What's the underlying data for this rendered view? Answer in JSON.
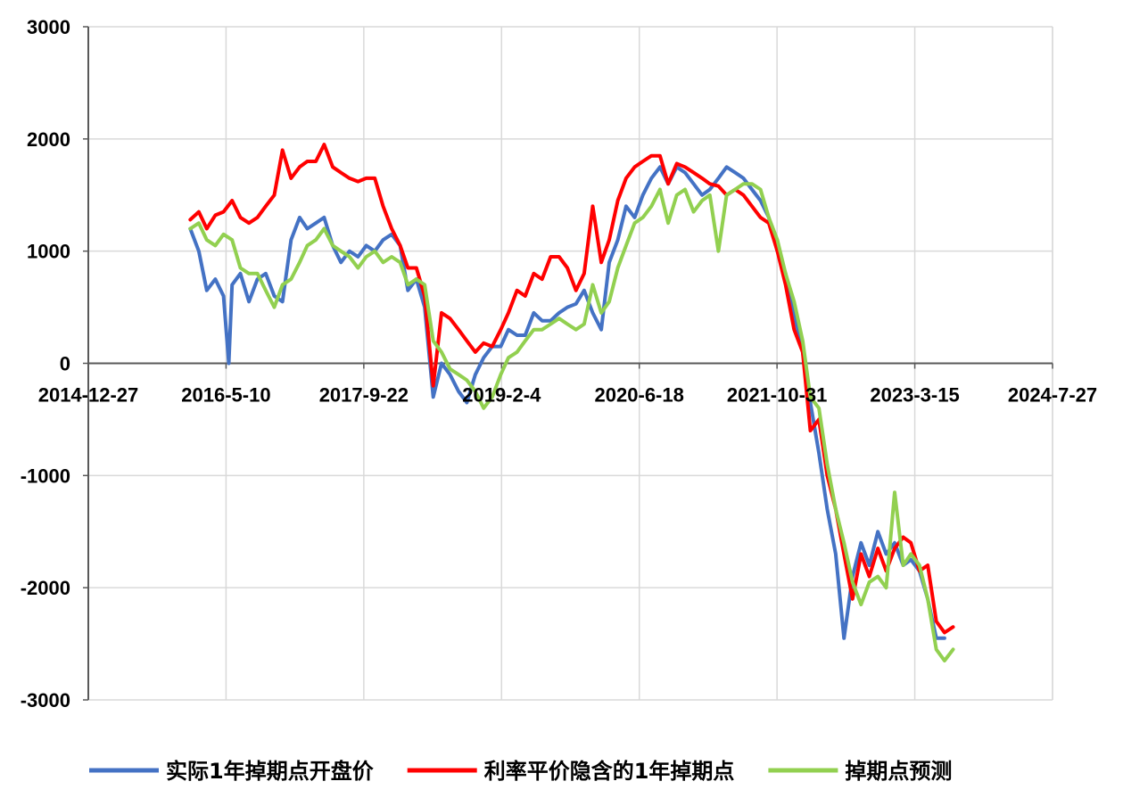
{
  "chart_data": {
    "type": "line",
    "title": "",
    "xlabel": "",
    "ylabel": "",
    "x_ticks": [
      "2014-12-27",
      "2016-5-10",
      "2017-9-22",
      "2019-2-4",
      "2020-6-18",
      "2021-10-31",
      "2023-3-15",
      "2024-7-27"
    ],
    "xlim": [
      "2014-12-27",
      "2024-7-27"
    ],
    "ylim": [
      -3000,
      3000
    ],
    "y_ticks": [
      3000,
      2000,
      1000,
      0,
      -1000,
      -2000,
      -3000
    ],
    "grid": true,
    "legend_position": "bottom",
    "series": [
      {
        "name": "实际1年掉期点开盘价",
        "color": "#4472C4",
        "points": [
          [
            "2016-01-01",
            1200
          ],
          [
            "2016-02-01",
            1000
          ],
          [
            "2016-03-01",
            650
          ],
          [
            "2016-04-01",
            750
          ],
          [
            "2016-05-01",
            600
          ],
          [
            "2016-05-20",
            0
          ],
          [
            "2016-06-01",
            700
          ],
          [
            "2016-07-01",
            800
          ],
          [
            "2016-08-01",
            550
          ],
          [
            "2016-09-01",
            750
          ],
          [
            "2016-10-01",
            800
          ],
          [
            "2016-11-01",
            600
          ],
          [
            "2016-12-01",
            550
          ],
          [
            "2017-01-01",
            1100
          ],
          [
            "2017-02-01",
            1300
          ],
          [
            "2017-03-01",
            1200
          ],
          [
            "2017-04-01",
            1250
          ],
          [
            "2017-05-01",
            1300
          ],
          [
            "2017-06-01",
            1050
          ],
          [
            "2017-07-01",
            900
          ],
          [
            "2017-08-01",
            1000
          ],
          [
            "2017-09-01",
            950
          ],
          [
            "2017-10-01",
            1050
          ],
          [
            "2017-11-01",
            1000
          ],
          [
            "2017-12-01",
            1100
          ],
          [
            "2018-01-01",
            1150
          ],
          [
            "2018-02-01",
            1050
          ],
          [
            "2018-03-01",
            650
          ],
          [
            "2018-04-01",
            750
          ],
          [
            "2018-05-01",
            500
          ],
          [
            "2018-06-01",
            -300
          ],
          [
            "2018-07-01",
            0
          ],
          [
            "2018-08-01",
            -100
          ],
          [
            "2018-09-01",
            -250
          ],
          [
            "2018-10-01",
            -350
          ],
          [
            "2018-11-01",
            -100
          ],
          [
            "2018-12-01",
            50
          ],
          [
            "2019-01-01",
            150
          ],
          [
            "2019-02-01",
            150
          ],
          [
            "2019-03-01",
            300
          ],
          [
            "2019-04-01",
            250
          ],
          [
            "2019-05-01",
            250
          ],
          [
            "2019-06-01",
            450
          ],
          [
            "2019-07-01",
            380
          ],
          [
            "2019-08-01",
            380
          ],
          [
            "2019-09-01",
            450
          ],
          [
            "2019-10-01",
            500
          ],
          [
            "2019-11-01",
            530
          ],
          [
            "2019-12-01",
            650
          ],
          [
            "2020-01-01",
            450
          ],
          [
            "2020-02-01",
            300
          ],
          [
            "2020-03-01",
            900
          ],
          [
            "2020-04-01",
            1100
          ],
          [
            "2020-05-01",
            1400
          ],
          [
            "2020-06-01",
            1300
          ],
          [
            "2020-07-01",
            1500
          ],
          [
            "2020-08-01",
            1650
          ],
          [
            "2020-09-01",
            1750
          ],
          [
            "2020-10-01",
            1600
          ],
          [
            "2020-11-01",
            1750
          ],
          [
            "2020-12-01",
            1700
          ],
          [
            "2021-01-01",
            1600
          ],
          [
            "2021-02-01",
            1500
          ],
          [
            "2021-03-01",
            1550
          ],
          [
            "2021-04-01",
            1650
          ],
          [
            "2021-05-01",
            1750
          ],
          [
            "2021-06-01",
            1700
          ],
          [
            "2021-07-01",
            1650
          ],
          [
            "2021-08-01",
            1550
          ],
          [
            "2021-09-01",
            1450
          ],
          [
            "2021-10-01",
            1300
          ],
          [
            "2021-11-01",
            1000
          ],
          [
            "2021-12-01",
            800
          ],
          [
            "2022-01-01",
            450
          ],
          [
            "2022-02-01",
            100
          ],
          [
            "2022-03-01",
            -350
          ],
          [
            "2022-04-01",
            -800
          ],
          [
            "2022-05-01",
            -1300
          ],
          [
            "2022-06-01",
            -1700
          ],
          [
            "2022-07-01",
            -2450
          ],
          [
            "2022-08-01",
            -1900
          ],
          [
            "2022-09-01",
            -1600
          ],
          [
            "2022-10-01",
            -1800
          ],
          [
            "2022-11-01",
            -1500
          ],
          [
            "2022-12-01",
            -1700
          ],
          [
            "2023-01-01",
            -1600
          ],
          [
            "2023-02-01",
            -1800
          ],
          [
            "2023-03-01",
            -1750
          ],
          [
            "2023-04-01",
            -1850
          ],
          [
            "2023-05-01",
            -2100
          ],
          [
            "2023-06-01",
            -2450
          ],
          [
            "2023-07-01",
            -2450
          ]
        ]
      },
      {
        "name": "利率平价隐含的1年掉期点",
        "color": "#FF0000",
        "points": [
          [
            "2016-01-01",
            1280
          ],
          [
            "2016-02-01",
            1350
          ],
          [
            "2016-03-01",
            1200
          ],
          [
            "2016-04-01",
            1320
          ],
          [
            "2016-05-01",
            1350
          ],
          [
            "2016-06-01",
            1450
          ],
          [
            "2016-07-01",
            1300
          ],
          [
            "2016-08-01",
            1250
          ],
          [
            "2016-09-01",
            1300
          ],
          [
            "2016-10-01",
            1400
          ],
          [
            "2016-11-01",
            1500
          ],
          [
            "2016-12-01",
            1900
          ],
          [
            "2017-01-01",
            1650
          ],
          [
            "2017-02-01",
            1750
          ],
          [
            "2017-03-01",
            1800
          ],
          [
            "2017-04-01",
            1800
          ],
          [
            "2017-05-01",
            1950
          ],
          [
            "2017-06-01",
            1750
          ],
          [
            "2017-07-01",
            1700
          ],
          [
            "2017-08-01",
            1650
          ],
          [
            "2017-09-01",
            1620
          ],
          [
            "2017-10-01",
            1650
          ],
          [
            "2017-11-01",
            1650
          ],
          [
            "2017-12-01",
            1400
          ],
          [
            "2018-01-01",
            1200
          ],
          [
            "2018-02-01",
            1050
          ],
          [
            "2018-03-01",
            850
          ],
          [
            "2018-04-01",
            850
          ],
          [
            "2018-05-01",
            600
          ],
          [
            "2018-06-01",
            -200
          ],
          [
            "2018-07-01",
            450
          ],
          [
            "2018-08-01",
            400
          ],
          [
            "2018-09-01",
            300
          ],
          [
            "2018-10-01",
            200
          ],
          [
            "2018-11-01",
            100
          ],
          [
            "2018-12-01",
            180
          ],
          [
            "2019-01-01",
            150
          ],
          [
            "2019-02-01",
            300
          ],
          [
            "2019-03-01",
            450
          ],
          [
            "2019-04-01",
            650
          ],
          [
            "2019-05-01",
            600
          ],
          [
            "2019-06-01",
            800
          ],
          [
            "2019-07-01",
            750
          ],
          [
            "2019-08-01",
            950
          ],
          [
            "2019-09-01",
            950
          ],
          [
            "2019-10-01",
            850
          ],
          [
            "2019-11-01",
            650
          ],
          [
            "2019-12-01",
            800
          ],
          [
            "2020-01-01",
            1400
          ],
          [
            "2020-02-01",
            900
          ],
          [
            "2020-03-01",
            1100
          ],
          [
            "2020-04-01",
            1450
          ],
          [
            "2020-05-01",
            1650
          ],
          [
            "2020-06-01",
            1750
          ],
          [
            "2020-07-01",
            1800
          ],
          [
            "2020-08-01",
            1850
          ],
          [
            "2020-09-01",
            1850
          ],
          [
            "2020-10-01",
            1600
          ],
          [
            "2020-11-01",
            1780
          ],
          [
            "2020-12-01",
            1750
          ],
          [
            "2021-01-01",
            1700
          ],
          [
            "2021-02-01",
            1650
          ],
          [
            "2021-03-01",
            1600
          ],
          [
            "2021-04-01",
            1580
          ],
          [
            "2021-05-01",
            1500
          ],
          [
            "2021-06-01",
            1550
          ],
          [
            "2021-07-01",
            1500
          ],
          [
            "2021-08-01",
            1400
          ],
          [
            "2021-09-01",
            1300
          ],
          [
            "2021-10-01",
            1250
          ],
          [
            "2021-11-01",
            1000
          ],
          [
            "2021-12-01",
            700
          ],
          [
            "2022-01-01",
            300
          ],
          [
            "2022-02-01",
            100
          ],
          [
            "2022-03-01",
            -600
          ],
          [
            "2022-04-01",
            -500
          ],
          [
            "2022-05-01",
            -1000
          ],
          [
            "2022-06-01",
            -1300
          ],
          [
            "2022-07-01",
            -1700
          ],
          [
            "2022-08-01",
            -2100
          ],
          [
            "2022-09-01",
            -1700
          ],
          [
            "2022-10-01",
            -1900
          ],
          [
            "2022-11-01",
            -1650
          ],
          [
            "2022-12-01",
            -1850
          ],
          [
            "2023-01-01",
            -1650
          ],
          [
            "2023-02-01",
            -1550
          ],
          [
            "2023-03-01",
            -1600
          ],
          [
            "2023-04-01",
            -1850
          ],
          [
            "2023-05-01",
            -1800
          ],
          [
            "2023-06-01",
            -2300
          ],
          [
            "2023-07-01",
            -2400
          ],
          [
            "2023-08-01",
            -2350
          ]
        ]
      },
      {
        "name": "掉期点预测",
        "color": "#92D050",
        "points": [
          [
            "2016-01-01",
            1200
          ],
          [
            "2016-02-01",
            1250
          ],
          [
            "2016-03-01",
            1100
          ],
          [
            "2016-04-01",
            1050
          ],
          [
            "2016-05-01",
            1150
          ],
          [
            "2016-06-01",
            1100
          ],
          [
            "2016-07-01",
            850
          ],
          [
            "2016-08-01",
            800
          ],
          [
            "2016-09-01",
            800
          ],
          [
            "2016-10-01",
            650
          ],
          [
            "2016-11-01",
            500
          ],
          [
            "2016-12-01",
            700
          ],
          [
            "2017-01-01",
            750
          ],
          [
            "2017-02-01",
            900
          ],
          [
            "2017-03-01",
            1050
          ],
          [
            "2017-04-01",
            1100
          ],
          [
            "2017-05-01",
            1200
          ],
          [
            "2017-06-01",
            1050
          ],
          [
            "2017-07-01",
            1000
          ],
          [
            "2017-08-01",
            950
          ],
          [
            "2017-09-01",
            850
          ],
          [
            "2017-10-01",
            950
          ],
          [
            "2017-11-01",
            1000
          ],
          [
            "2017-12-01",
            900
          ],
          [
            "2018-01-01",
            950
          ],
          [
            "2018-02-01",
            900
          ],
          [
            "2018-03-01",
            700
          ],
          [
            "2018-04-01",
            750
          ],
          [
            "2018-05-01",
            700
          ],
          [
            "2018-06-01",
            200
          ],
          [
            "2018-07-01",
            100
          ],
          [
            "2018-08-01",
            -50
          ],
          [
            "2018-09-01",
            -100
          ],
          [
            "2018-10-01",
            -150
          ],
          [
            "2018-11-01",
            -250
          ],
          [
            "2018-12-01",
            -400
          ],
          [
            "2019-01-01",
            -300
          ],
          [
            "2019-02-01",
            -100
          ],
          [
            "2019-03-01",
            50
          ],
          [
            "2019-04-01",
            100
          ],
          [
            "2019-05-01",
            200
          ],
          [
            "2019-06-01",
            300
          ],
          [
            "2019-07-01",
            300
          ],
          [
            "2019-08-01",
            350
          ],
          [
            "2019-09-01",
            400
          ],
          [
            "2019-10-01",
            350
          ],
          [
            "2019-11-01",
            300
          ],
          [
            "2019-12-01",
            350
          ],
          [
            "2020-01-01",
            700
          ],
          [
            "2020-02-01",
            450
          ],
          [
            "2020-03-01",
            550
          ],
          [
            "2020-04-01",
            850
          ],
          [
            "2020-05-01",
            1050
          ],
          [
            "2020-06-01",
            1250
          ],
          [
            "2020-07-01",
            1300
          ],
          [
            "2020-08-01",
            1400
          ],
          [
            "2020-09-01",
            1550
          ],
          [
            "2020-10-01",
            1250
          ],
          [
            "2020-11-01",
            1500
          ],
          [
            "2020-12-01",
            1550
          ],
          [
            "2021-01-01",
            1350
          ],
          [
            "2021-02-01",
            1450
          ],
          [
            "2021-03-01",
            1500
          ],
          [
            "2021-04-01",
            1000
          ],
          [
            "2021-05-01",
            1500
          ],
          [
            "2021-06-01",
            1550
          ],
          [
            "2021-07-01",
            1600
          ],
          [
            "2021-08-01",
            1600
          ],
          [
            "2021-09-01",
            1550
          ],
          [
            "2021-10-01",
            1300
          ],
          [
            "2021-11-01",
            1100
          ],
          [
            "2021-12-01",
            800
          ],
          [
            "2022-01-01",
            550
          ],
          [
            "2022-02-01",
            200
          ],
          [
            "2022-03-01",
            -300
          ],
          [
            "2022-04-01",
            -400
          ],
          [
            "2022-05-01",
            -900
          ],
          [
            "2022-06-01",
            -1300
          ],
          [
            "2022-07-01",
            -1600
          ],
          [
            "2022-08-01",
            -1950
          ],
          [
            "2022-09-01",
            -2150
          ],
          [
            "2022-10-01",
            -1950
          ],
          [
            "2022-11-01",
            -1900
          ],
          [
            "2022-12-01",
            -2000
          ],
          [
            "2023-01-01",
            -1150
          ],
          [
            "2023-02-01",
            -1800
          ],
          [
            "2023-03-01",
            -1700
          ],
          [
            "2023-04-01",
            -1800
          ],
          [
            "2023-05-01",
            -2100
          ],
          [
            "2023-06-01",
            -2550
          ],
          [
            "2023-07-01",
            -2650
          ],
          [
            "2023-08-01",
            -2550
          ]
        ]
      }
    ]
  }
}
